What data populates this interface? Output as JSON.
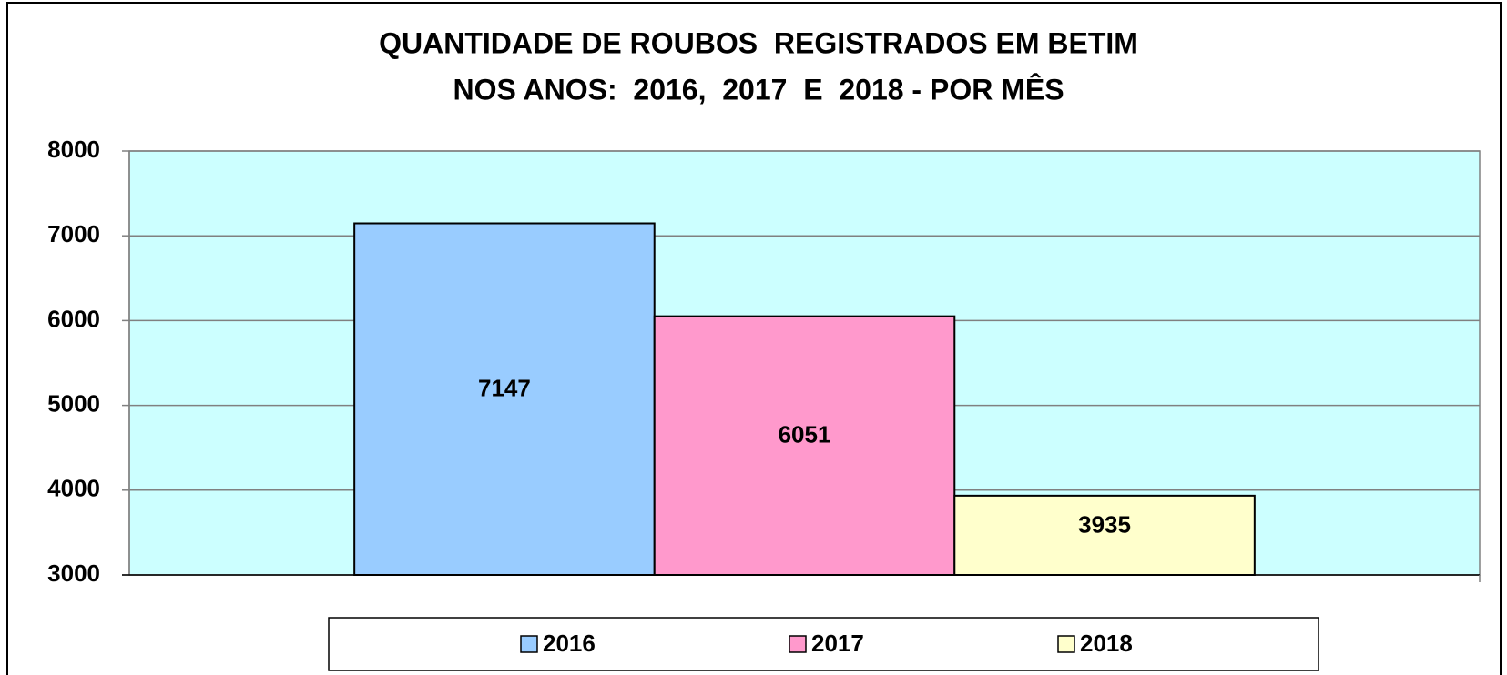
{
  "chart_data": {
    "type": "bar",
    "title": [
      "QUANTIDADE DE ROUBOS  REGISTRADOS EM BETIM",
      "NOS ANOS:  2016,  2017  E  2018 - POR MÊS"
    ],
    "categories": [
      null
    ],
    "series": [
      {
        "name": "2016",
        "color": "#99ccff",
        "values": [
          7147
        ]
      },
      {
        "name": "2017",
        "color": "#ff99cc",
        "values": [
          6051
        ]
      },
      {
        "name": "2018",
        "color": "#ffffcc",
        "values": [
          3935
        ]
      }
    ],
    "ylim": [
      3000,
      8000
    ],
    "yticks": [
      3000,
      4000,
      5000,
      6000,
      7000,
      8000
    ],
    "grid": true,
    "legend": "bottom",
    "plot_background": "#ccffff"
  }
}
